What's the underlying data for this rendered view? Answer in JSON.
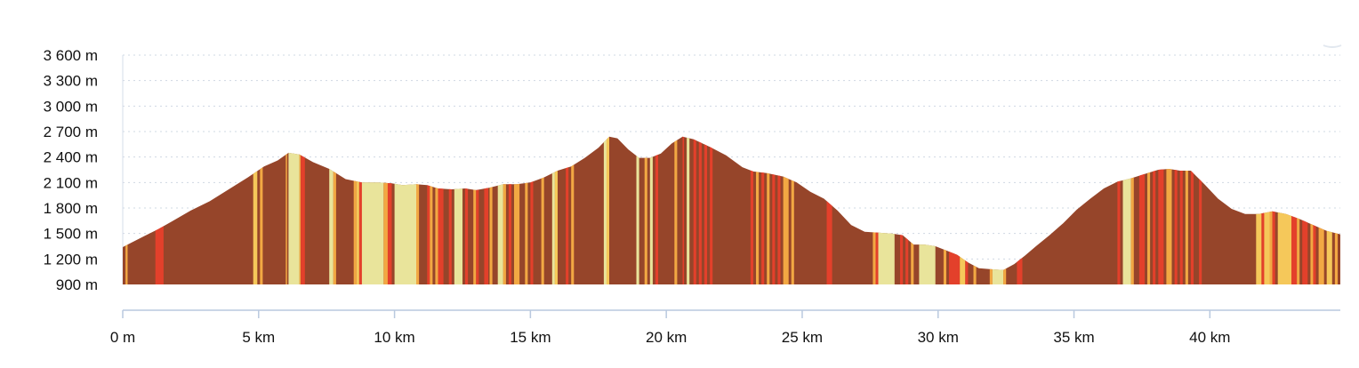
{
  "chart_data": {
    "type": "area",
    "title": "",
    "xlabel": "",
    "ylabel": "",
    "x_unit": "km",
    "y_unit": "m",
    "xlim": [
      0,
      44.8
    ],
    "ylim": [
      900,
      3600
    ],
    "y_ticks": [
      900,
      1200,
      1500,
      1800,
      2100,
      2400,
      2700,
      3000,
      3300,
      3600
    ],
    "y_tick_labels": [
      "900 m",
      "1 200 m",
      "1 500 m",
      "1 800 m",
      "2 100 m",
      "2 400 m",
      "2 700 m",
      "3 000 m",
      "3 300 m",
      "3 600 m"
    ],
    "x_ticks": [
      0,
      5,
      10,
      15,
      20,
      25,
      30,
      35,
      40
    ],
    "x_tick_labels": [
      "0 m",
      "5 km",
      "10 km",
      "15 km",
      "20 km",
      "25 km",
      "30 km",
      "35 km",
      "40 km"
    ],
    "grid": true,
    "profile": {
      "x": [
        0,
        0.3,
        0.8,
        1.3,
        1.8,
        2.5,
        3.2,
        3.9,
        4.6,
        5.2,
        5.7,
        6.1,
        6.5,
        7.0,
        7.6,
        8.2,
        8.8,
        9.4,
        9.9,
        10.3,
        10.8,
        11.2,
        11.6,
        12.1,
        12.6,
        13.0,
        13.5,
        14.0,
        14.5,
        15.0,
        15.5,
        16.0,
        16.5,
        17.0,
        17.5,
        17.9,
        18.2,
        18.6,
        19.0,
        19.4,
        19.8,
        20.2,
        20.6,
        21.0,
        21.6,
        22.2,
        22.8,
        23.2,
        23.7,
        24.3,
        24.8,
        25.3,
        25.8,
        26.3,
        26.8,
        27.3,
        27.8,
        28.3,
        28.7,
        29.1,
        29.5,
        29.9,
        30.3,
        30.7,
        31.1,
        31.5,
        31.9,
        32.4,
        32.8,
        33.2,
        33.6,
        34.1,
        34.6,
        35.1,
        35.6,
        36.1,
        36.6,
        37.1,
        37.6,
        38.1,
        38.5,
        38.9,
        39.3,
        39.8,
        40.3,
        40.8,
        41.3,
        41.8,
        42.3,
        42.8,
        43.3,
        43.8,
        44.3,
        44.8
      ],
      "y": [
        1340,
        1390,
        1470,
        1550,
        1640,
        1770,
        1880,
        2020,
        2160,
        2290,
        2360,
        2450,
        2430,
        2340,
        2260,
        2140,
        2100,
        2100,
        2090,
        2070,
        2080,
        2070,
        2030,
        2020,
        2030,
        2010,
        2040,
        2080,
        2080,
        2100,
        2160,
        2240,
        2290,
        2390,
        2510,
        2640,
        2620,
        2490,
        2390,
        2390,
        2440,
        2560,
        2640,
        2610,
        2520,
        2420,
        2280,
        2230,
        2210,
        2170,
        2100,
        1990,
        1910,
        1770,
        1600,
        1520,
        1510,
        1500,
        1480,
        1370,
        1370,
        1350,
        1300,
        1250,
        1160,
        1090,
        1080,
        1070,
        1140,
        1240,
        1350,
        1480,
        1620,
        1780,
        1910,
        2030,
        2110,
        2150,
        2200,
        2250,
        2260,
        2240,
        2240,
        2080,
        1910,
        1790,
        1730,
        1730,
        1760,
        1730,
        1670,
        1600,
        1530,
        1490
      ]
    },
    "slope_colors": {
      "dark": "#96452a",
      "red": "#e3402b",
      "orange": "#f2a843",
      "yellow": "#f5c85a",
      "pale": "#e9e49b"
    },
    "stripes": [
      {
        "x0": 0.1,
        "x1": 0.18,
        "c": "orange"
      },
      {
        "x0": 1.2,
        "x1": 1.5,
        "c": "red"
      },
      {
        "x0": 4.8,
        "x1": 4.95,
        "c": "yellow"
      },
      {
        "x0": 5.05,
        "x1": 5.15,
        "c": "orange"
      },
      {
        "x0": 6.0,
        "x1": 6.05,
        "c": "orange"
      },
      {
        "x0": 6.1,
        "x1": 6.5,
        "c": "pale"
      },
      {
        "x0": 6.5,
        "x1": 6.55,
        "c": "orange"
      },
      {
        "x0": 6.55,
        "x1": 6.7,
        "c": "red"
      },
      {
        "x0": 7.6,
        "x1": 7.75,
        "c": "pale"
      },
      {
        "x0": 7.75,
        "x1": 7.85,
        "c": "orange"
      },
      {
        "x0": 8.5,
        "x1": 8.6,
        "c": "orange"
      },
      {
        "x0": 8.6,
        "x1": 8.7,
        "c": "yellow"
      },
      {
        "x0": 8.7,
        "x1": 8.8,
        "c": "red"
      },
      {
        "x0": 8.8,
        "x1": 9.6,
        "c": "pale"
      },
      {
        "x0": 9.6,
        "x1": 9.75,
        "c": "orange"
      },
      {
        "x0": 9.75,
        "x1": 9.9,
        "c": "red"
      },
      {
        "x0": 10.0,
        "x1": 10.8,
        "c": "pale"
      },
      {
        "x0": 10.8,
        "x1": 10.9,
        "c": "orange"
      },
      {
        "x0": 11.2,
        "x1": 11.3,
        "c": "red"
      },
      {
        "x0": 11.3,
        "x1": 11.4,
        "c": "orange"
      },
      {
        "x0": 11.5,
        "x1": 11.6,
        "c": "orange"
      },
      {
        "x0": 11.6,
        "x1": 11.8,
        "c": "red"
      },
      {
        "x0": 12.0,
        "x1": 12.1,
        "c": "red"
      },
      {
        "x0": 12.2,
        "x1": 12.5,
        "c": "pale"
      },
      {
        "x0": 12.6,
        "x1": 12.7,
        "c": "red"
      },
      {
        "x0": 12.9,
        "x1": 13.0,
        "c": "orange"
      },
      {
        "x0": 13.0,
        "x1": 13.1,
        "c": "red"
      },
      {
        "x0": 13.3,
        "x1": 13.45,
        "c": "red"
      },
      {
        "x0": 13.5,
        "x1": 13.6,
        "c": "orange"
      },
      {
        "x0": 13.8,
        "x1": 14.0,
        "c": "pale"
      },
      {
        "x0": 14.0,
        "x1": 14.1,
        "c": "orange"
      },
      {
        "x0": 14.2,
        "x1": 14.3,
        "c": "red"
      },
      {
        "x0": 14.4,
        "x1": 14.6,
        "c": "orange"
      },
      {
        "x0": 14.8,
        "x1": 14.9,
        "c": "orange"
      },
      {
        "x0": 15.0,
        "x1": 15.1,
        "c": "red"
      },
      {
        "x0": 15.4,
        "x1": 15.5,
        "c": "orange"
      },
      {
        "x0": 15.8,
        "x1": 15.9,
        "c": "pale"
      },
      {
        "x0": 15.9,
        "x1": 16.0,
        "c": "yellow"
      },
      {
        "x0": 16.3,
        "x1": 16.4,
        "c": "red"
      },
      {
        "x0": 16.5,
        "x1": 16.6,
        "c": "orange"
      },
      {
        "x0": 17.7,
        "x1": 17.8,
        "c": "pale"
      },
      {
        "x0": 17.8,
        "x1": 17.9,
        "c": "yellow"
      },
      {
        "x0": 18.9,
        "x1": 19.0,
        "c": "pale"
      },
      {
        "x0": 19.2,
        "x1": 19.3,
        "c": "orange"
      },
      {
        "x0": 19.4,
        "x1": 19.5,
        "c": "pale"
      },
      {
        "x0": 19.6,
        "x1": 19.7,
        "c": "red"
      },
      {
        "x0": 20.3,
        "x1": 20.4,
        "c": "orange"
      },
      {
        "x0": 20.6,
        "x1": 20.65,
        "c": "red"
      },
      {
        "x0": 20.75,
        "x1": 20.85,
        "c": "pale"
      },
      {
        "x0": 21.0,
        "x1": 21.1,
        "c": "red"
      },
      {
        "x0": 21.2,
        "x1": 21.3,
        "c": "red"
      },
      {
        "x0": 21.4,
        "x1": 21.5,
        "c": "red"
      },
      {
        "x0": 21.6,
        "x1": 21.7,
        "c": "red"
      },
      {
        "x0": 23.1,
        "x1": 23.2,
        "c": "red"
      },
      {
        "x0": 23.3,
        "x1": 23.4,
        "c": "orange"
      },
      {
        "x0": 23.5,
        "x1": 23.6,
        "c": "red"
      },
      {
        "x0": 23.7,
        "x1": 23.8,
        "c": "orange"
      },
      {
        "x0": 23.9,
        "x1": 24.0,
        "c": "red"
      },
      {
        "x0": 24.1,
        "x1": 24.2,
        "c": "red"
      },
      {
        "x0": 24.3,
        "x1": 24.5,
        "c": "orange"
      },
      {
        "x0": 24.6,
        "x1": 24.7,
        "c": "orange"
      },
      {
        "x0": 25.9,
        "x1": 26.1,
        "c": "red"
      },
      {
        "x0": 27.6,
        "x1": 27.7,
        "c": "orange"
      },
      {
        "x0": 27.7,
        "x1": 27.8,
        "c": "red"
      },
      {
        "x0": 27.8,
        "x1": 28.4,
        "c": "pale"
      },
      {
        "x0": 28.6,
        "x1": 28.7,
        "c": "red"
      },
      {
        "x0": 28.8,
        "x1": 28.9,
        "c": "red"
      },
      {
        "x0": 29.0,
        "x1": 29.1,
        "c": "orange"
      },
      {
        "x0": 29.3,
        "x1": 29.9,
        "c": "pale"
      },
      {
        "x0": 30.2,
        "x1": 30.3,
        "c": "orange"
      },
      {
        "x0": 30.4,
        "x1": 30.8,
        "c": "red"
      },
      {
        "x0": 30.8,
        "x1": 31.0,
        "c": "yellow"
      },
      {
        "x0": 31.0,
        "x1": 31.1,
        "c": "red"
      },
      {
        "x0": 31.3,
        "x1": 31.4,
        "c": "orange"
      },
      {
        "x0": 31.9,
        "x1": 32.0,
        "c": "orange"
      },
      {
        "x0": 32.0,
        "x1": 32.4,
        "c": "pale"
      },
      {
        "x0": 32.4,
        "x1": 32.5,
        "c": "orange"
      },
      {
        "x0": 32.9,
        "x1": 33.1,
        "c": "red"
      },
      {
        "x0": 36.6,
        "x1": 36.7,
        "c": "red"
      },
      {
        "x0": 36.8,
        "x1": 37.1,
        "c": "pale"
      },
      {
        "x0": 37.1,
        "x1": 37.2,
        "c": "orange"
      },
      {
        "x0": 37.4,
        "x1": 37.6,
        "c": "red"
      },
      {
        "x0": 37.7,
        "x1": 37.8,
        "c": "orange"
      },
      {
        "x0": 37.9,
        "x1": 38.0,
        "c": "red"
      },
      {
        "x0": 38.1,
        "x1": 38.3,
        "c": "red"
      },
      {
        "x0": 38.4,
        "x1": 38.6,
        "c": "orange"
      },
      {
        "x0": 38.7,
        "x1": 38.8,
        "c": "red"
      },
      {
        "x0": 38.9,
        "x1": 39.0,
        "c": "red"
      },
      {
        "x0": 39.1,
        "x1": 39.2,
        "c": "orange"
      },
      {
        "x0": 39.3,
        "x1": 39.4,
        "c": "red"
      },
      {
        "x0": 39.6,
        "x1": 39.7,
        "c": "red"
      },
      {
        "x0": 41.7,
        "x1": 41.9,
        "c": "yellow"
      },
      {
        "x0": 41.9,
        "x1": 42.0,
        "c": "red"
      },
      {
        "x0": 42.0,
        "x1": 42.2,
        "c": "yellow"
      },
      {
        "x0": 42.2,
        "x1": 42.3,
        "c": "orange"
      },
      {
        "x0": 42.3,
        "x1": 42.4,
        "c": "red"
      },
      {
        "x0": 42.5,
        "x1": 43.0,
        "c": "yellow"
      },
      {
        "x0": 43.0,
        "x1": 43.2,
        "c": "red"
      },
      {
        "x0": 43.2,
        "x1": 43.3,
        "c": "orange"
      },
      {
        "x0": 43.4,
        "x1": 43.6,
        "c": "red"
      },
      {
        "x0": 43.7,
        "x1": 43.8,
        "c": "orange"
      },
      {
        "x0": 43.8,
        "x1": 43.9,
        "c": "red"
      },
      {
        "x0": 44.0,
        "x1": 44.2,
        "c": "orange"
      },
      {
        "x0": 44.3,
        "x1": 44.5,
        "c": "yellow"
      },
      {
        "x0": 44.6,
        "x1": 44.7,
        "c": "orange"
      }
    ]
  }
}
